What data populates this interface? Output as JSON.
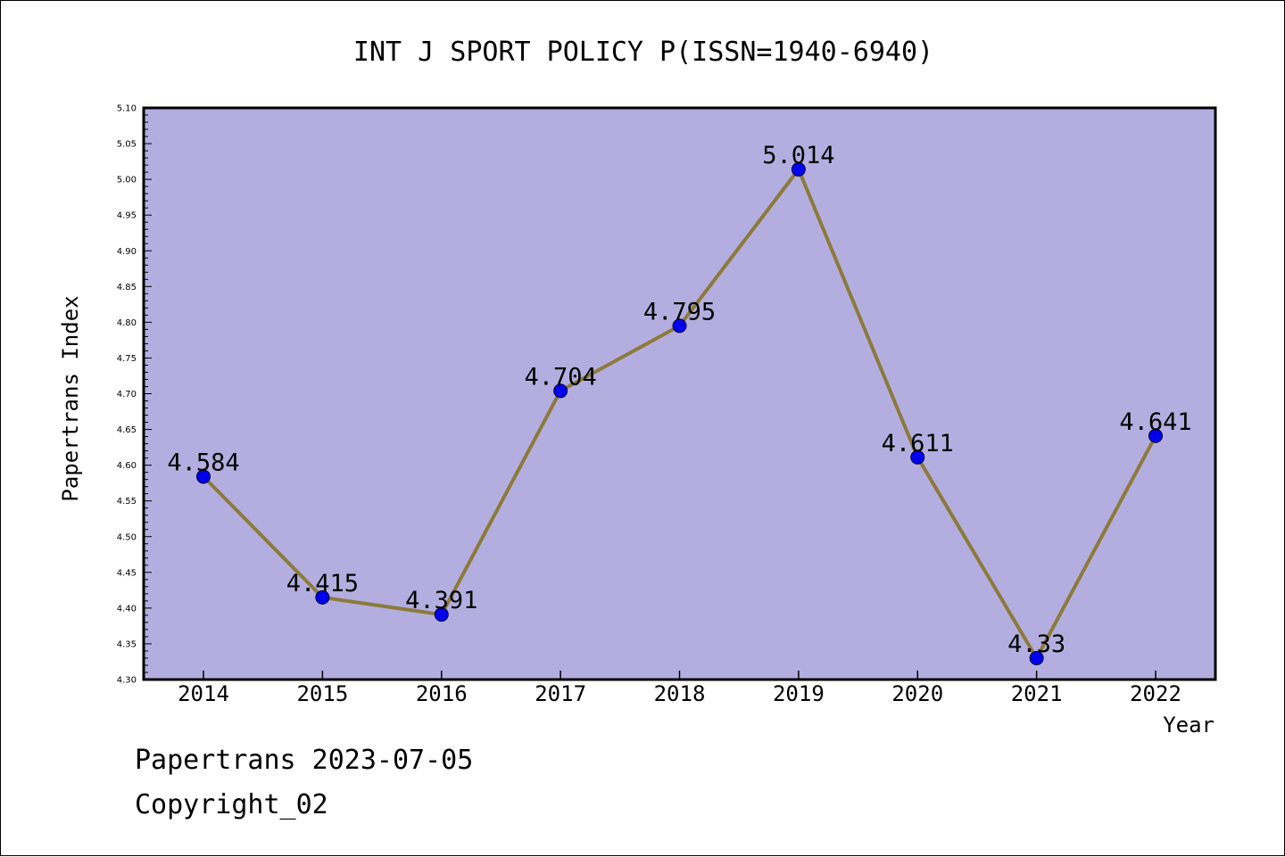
{
  "chart_data": {
    "type": "line",
    "title": "INT J SPORT POLICY P(ISSN=1940-6940)",
    "xlabel": "Year",
    "ylabel": "Papertrans Index",
    "categories": [
      "2014",
      "2015",
      "2016",
      "2017",
      "2018",
      "2019",
      "2020",
      "2021",
      "2022"
    ],
    "values": [
      4.584,
      4.415,
      4.391,
      4.704,
      4.795,
      5.014,
      4.611,
      4.33,
      4.641
    ],
    "data_labels": [
      "4.584",
      "4.415",
      "4.391",
      "4.704",
      "4.795",
      "5.014",
      "4.611",
      "4.33",
      "4.641"
    ],
    "ylim": [
      4.3,
      5.1
    ],
    "y_ticks": [
      "4.30",
      "4.35",
      "4.40",
      "4.45",
      "4.50",
      "4.55",
      "4.60",
      "4.65",
      "4.70",
      "4.75",
      "4.80",
      "4.85",
      "4.90",
      "4.95",
      "5.00",
      "5.05",
      "5.10"
    ],
    "grid": false,
    "colors": {
      "plot_background": "#b4aee0",
      "line": "#8b7a3a",
      "marker": "#0000ee"
    }
  },
  "footer": {
    "line1": "Papertrans 2023-07-05",
    "line2": "Copyright_02"
  }
}
